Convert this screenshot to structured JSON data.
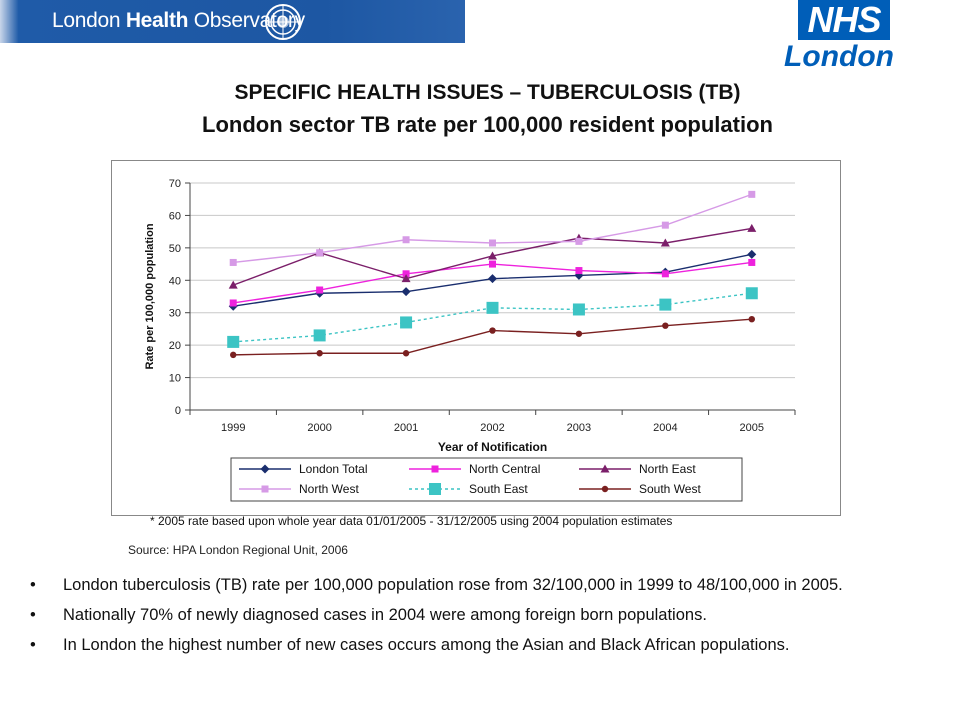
{
  "header": {
    "banner_text_light": "London ",
    "banner_text_bold": "Health",
    "banner_text_end": " Observatory",
    "nhs_logo_text": "NHS",
    "nhs_region": "London",
    "nhs_color": "#005eb8",
    "banner_color": "#1d57a3"
  },
  "title": {
    "line1": "SPECIFIC HEALTH ISSUES – TUBERCULOSIS (TB)",
    "line2": "London sector TB rate per 100,000 resident population"
  },
  "chart_data": {
    "type": "line",
    "xlabel": "Year of Notification",
    "ylabel": "Rate per 100,000 population",
    "x": [
      "1999",
      "2000",
      "2001",
      "2002",
      "2003",
      "2004",
      "2005"
    ],
    "yticks": [
      0,
      10,
      20,
      30,
      40,
      50,
      60,
      70
    ],
    "ylim": [
      0,
      70
    ],
    "grid": true,
    "legend_placement": "bottom",
    "series": [
      {
        "name": "London Total",
        "values": [
          32,
          36,
          36.5,
          40.5,
          41.5,
          42.5,
          48
        ],
        "color": "#1a2e6e",
        "marker": "diamond",
        "dash": false
      },
      {
        "name": "North Central",
        "values": [
          33,
          37,
          42,
          45,
          43,
          42,
          45.5
        ],
        "color": "#ee22dd",
        "marker": "square",
        "dash": false
      },
      {
        "name": "North East",
        "values": [
          38.5,
          48.5,
          40.5,
          47.5,
          53,
          51.5,
          56
        ],
        "color": "#7b1f6a",
        "marker": "triangle",
        "dash": false
      },
      {
        "name": "North West",
        "values": [
          45.5,
          48.5,
          52.5,
          51.5,
          52,
          57,
          66.5
        ],
        "color": "#d69ae6",
        "marker": "square",
        "dash": false
      },
      {
        "name": "South East",
        "values": [
          21,
          23,
          27,
          31.5,
          31,
          32.5,
          36
        ],
        "color": "#3cc4c4",
        "marker": "square-large",
        "dash": true
      },
      {
        "name": "South West",
        "values": [
          17,
          17.5,
          17.5,
          24.5,
          23.5,
          26,
          28
        ],
        "color": "#7a2020",
        "marker": "circle",
        "dash": false
      }
    ],
    "footnote": "* 2005 rate based upon whole year data 01/01/2005 - 31/12/2005 using 2004 population estimates"
  },
  "source": "Source: HPA London Regional Unit, 2006",
  "bullets": [
    "London tuberculosis (TB) rate per 100,000 population rose from 32/100,000 in 1999 to 48/100,000 in 2005.",
    "Nationally 70% of newly diagnosed cases in 2004 were among foreign born populations.",
    "In London the highest number of new cases occurs among the Asian and Black African populations."
  ],
  "bullet_symbol": "•"
}
